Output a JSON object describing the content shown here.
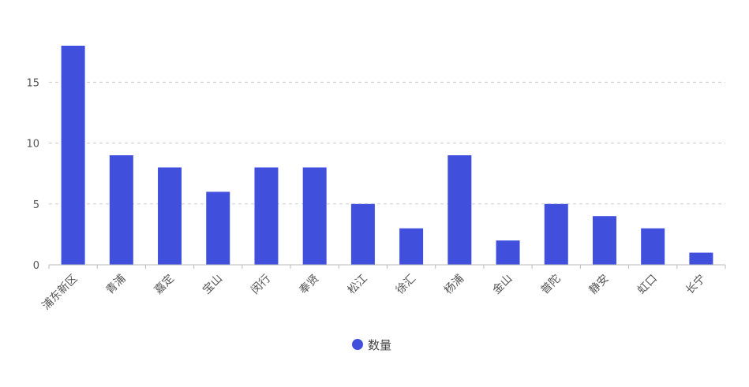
{
  "chart_data": {
    "type": "bar",
    "categories": [
      "浦东新区",
      "青浦",
      "嘉定",
      "宝山",
      "闵行",
      "奉贤",
      "松江",
      "徐汇",
      "杨浦",
      "金山",
      "普陀",
      "静安",
      "虹口",
      "长宁"
    ],
    "series": [
      {
        "name": "数量",
        "values": [
          18,
          9,
          8,
          6,
          8,
          8,
          5,
          3,
          9,
          2,
          5,
          4,
          3,
          1
        ],
        "color": "#4050dc"
      }
    ],
    "ylim": [
      0,
      18
    ],
    "yticks": [
      0,
      5,
      10,
      15
    ],
    "grid": true,
    "legend_position": "bottom-center"
  }
}
